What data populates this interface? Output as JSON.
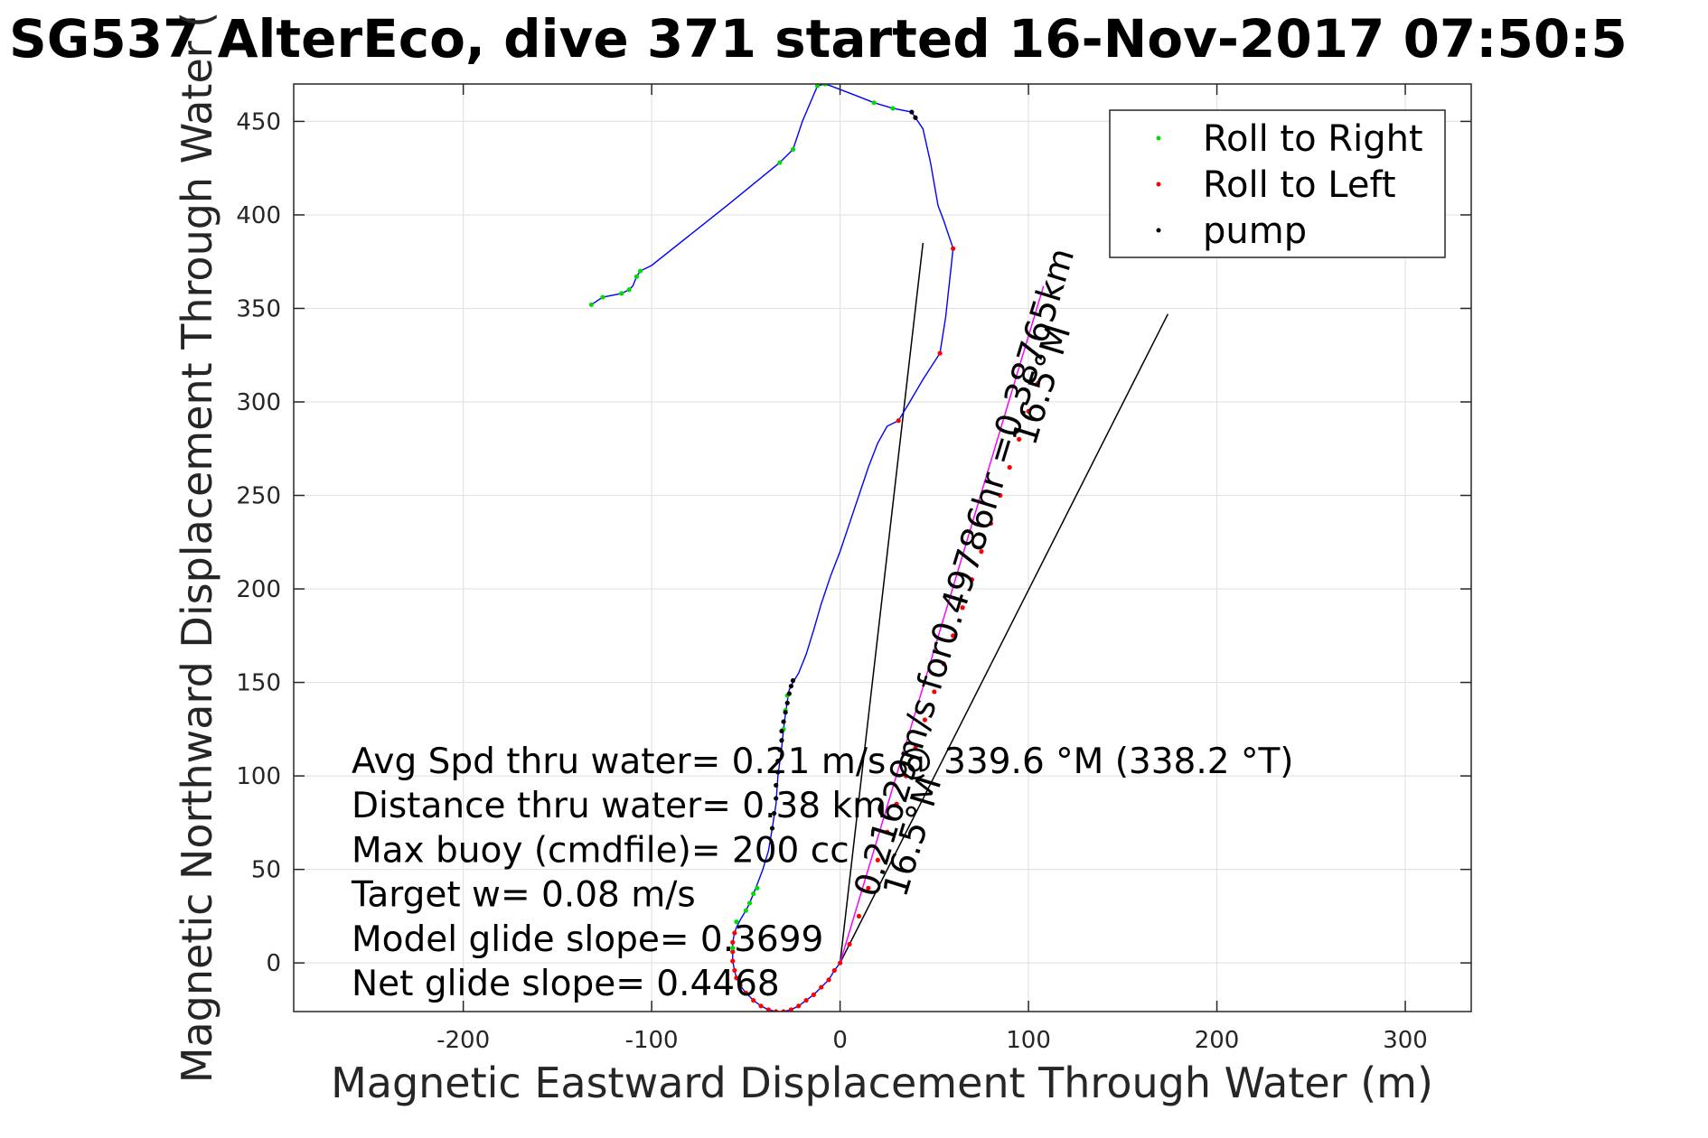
{
  "chart_data": {
    "type": "scatter",
    "title": "SG537 AlterEco, dive 371 started 16-Nov-2017 07:50:5",
    "xlabel": "Magnetic Eastward Displacement Through Water (m)",
    "ylabel": "Magnetic Northward Displacement Through Water (",
    "xlim": [
      -290,
      335
    ],
    "ylim": [
      -26,
      470
    ],
    "xticks": [
      -200,
      -100,
      0,
      100,
      200,
      300
    ],
    "yticks": [
      0,
      50,
      100,
      150,
      200,
      250,
      300,
      350,
      400,
      450
    ],
    "xtick_labels": [
      "-200",
      "-100",
      "0",
      "100",
      "200",
      "300"
    ],
    "ytick_labels": [
      "0",
      "50",
      "100",
      "150",
      "200",
      "250",
      "300",
      "350",
      "400",
      "450"
    ],
    "grid": true,
    "legend_position": "top-right",
    "legend": [
      {
        "label": "Roll to Right",
        "color": "#00dd00"
      },
      {
        "label": "Roll to Left",
        "color": "#ff0000"
      },
      {
        "label": "pump",
        "color": "#000000"
      }
    ],
    "track": {
      "name": "",
      "color": "#0000ff",
      "points": [
        [
          0,
          0
        ],
        [
          -3,
          -4
        ],
        [
          -6,
          -9
        ],
        [
          -10,
          -13
        ],
        [
          -14,
          -17
        ],
        [
          -18,
          -20
        ],
        [
          -22,
          -23
        ],
        [
          -26,
          -25
        ],
        [
          -30,
          -26
        ],
        [
          -34,
          -26
        ],
        [
          -38,
          -25
        ],
        [
          -42,
          -23
        ],
        [
          -46,
          -20
        ],
        [
          -50,
          -16
        ],
        [
          -53,
          -12
        ],
        [
          -55,
          -8
        ],
        [
          -56,
          -4
        ],
        [
          -57,
          1
        ],
        [
          -57,
          6
        ],
        [
          -57,
          11
        ],
        [
          -56,
          16
        ],
        [
          -55,
          19
        ],
        [
          -53,
          23
        ],
        [
          -50,
          28
        ],
        [
          -48,
          32
        ],
        [
          -46,
          37
        ],
        [
          -44,
          42
        ],
        [
          -41,
          50
        ],
        [
          -38,
          60
        ],
        [
          -36,
          72
        ],
        [
          -34,
          85
        ],
        [
          -33,
          100
        ],
        [
          -31,
          115
        ],
        [
          -30,
          125
        ],
        [
          -29,
          133
        ],
        [
          -28,
          140
        ],
        [
          -27,
          146
        ],
        [
          -25,
          150
        ],
        [
          -22,
          155
        ],
        [
          -18,
          165
        ],
        [
          -14,
          178
        ],
        [
          -10,
          192
        ],
        [
          -5,
          207
        ],
        [
          0,
          220
        ],
        [
          5,
          235
        ],
        [
          10,
          250
        ],
        [
          15,
          265
        ],
        [
          20,
          278
        ],
        [
          25,
          287
        ],
        [
          31,
          290
        ],
        [
          37,
          300
        ],
        [
          44,
          312
        ],
        [
          53,
          326
        ],
        [
          56,
          345
        ],
        [
          60,
          382
        ],
        [
          55,
          397
        ],
        [
          52,
          405
        ],
        [
          48,
          428
        ],
        [
          44,
          446
        ],
        [
          40,
          452
        ],
        [
          38,
          455
        ],
        [
          28,
          457
        ],
        [
          18,
          460
        ],
        [
          8,
          464
        ],
        [
          -5,
          469
        ],
        [
          -8,
          470
        ],
        [
          -12,
          469
        ],
        [
          -20,
          450
        ],
        [
          -25,
          435
        ],
        [
          -32,
          428
        ],
        [
          -60,
          405
        ],
        [
          -100,
          373
        ],
        [
          -106,
          370
        ],
        [
          -108,
          367
        ],
        [
          -110,
          362
        ],
        [
          -112,
          360
        ],
        [
          -114,
          359
        ],
        [
          -116,
          358
        ],
        [
          -126,
          356
        ],
        [
          -132,
          352
        ]
      ]
    },
    "roll_right_points": [
      [
        -132,
        352
      ],
      [
        -126,
        356
      ],
      [
        -116,
        358
      ],
      [
        -112,
        360
      ],
      [
        -108,
        367
      ],
      [
        -106,
        370
      ],
      [
        -32,
        428
      ],
      [
        -25,
        435
      ],
      [
        -12,
        469
      ],
      [
        -8,
        470
      ],
      [
        18,
        460
      ],
      [
        28,
        457
      ],
      [
        -57,
        8
      ],
      [
        -55,
        22
      ],
      [
        -50,
        28
      ],
      [
        -48,
        32
      ],
      [
        -46,
        37
      ],
      [
        -44,
        40
      ],
      [
        -30,
        125
      ],
      [
        -29,
        135
      ],
      [
        -28,
        143
      ]
    ],
    "roll_left_points": [
      [
        0,
        0
      ],
      [
        -3,
        -4
      ],
      [
        -6,
        -9
      ],
      [
        -10,
        -13
      ],
      [
        -14,
        -17
      ],
      [
        -18,
        -20
      ],
      [
        -22,
        -23
      ],
      [
        -26,
        -25
      ],
      [
        -30,
        -26
      ],
      [
        -34,
        -26
      ],
      [
        -38,
        -25
      ],
      [
        -42,
        -23
      ],
      [
        -46,
        -20
      ],
      [
        -50,
        -16
      ],
      [
        -53,
        -12
      ],
      [
        -55,
        -8
      ],
      [
        -56,
        -4
      ],
      [
        -57,
        1
      ],
      [
        -57,
        6
      ],
      [
        -57,
        11
      ],
      [
        -56,
        16
      ],
      [
        31,
        290
      ],
      [
        53,
        326
      ],
      [
        60,
        382
      ],
      [
        5,
        10
      ],
      [
        10,
        25
      ],
      [
        15,
        40
      ],
      [
        20,
        55
      ],
      [
        25,
        70
      ],
      [
        30,
        85
      ],
      [
        35,
        100
      ],
      [
        40,
        115
      ],
      [
        45,
        130
      ],
      [
        50,
        145
      ],
      [
        55,
        160
      ],
      [
        60,
        175
      ],
      [
        65,
        190
      ],
      [
        70,
        205
      ],
      [
        75,
        220
      ],
      [
        80,
        235
      ],
      [
        85,
        250
      ],
      [
        90,
        265
      ],
      [
        95,
        280
      ],
      [
        100,
        295
      ],
      [
        105,
        310
      ]
    ],
    "pump_points": [
      [
        -36,
        72
      ],
      [
        -35,
        80
      ],
      [
        -34,
        88
      ],
      [
        -34,
        95
      ],
      [
        -33,
        102
      ],
      [
        -33,
        108
      ],
      [
        -32,
        114
      ],
      [
        -31,
        119
      ],
      [
        -31,
        124
      ],
      [
        -30,
        129
      ],
      [
        -29,
        134
      ],
      [
        -28,
        139
      ],
      [
        -27,
        144
      ],
      [
        -26,
        148
      ],
      [
        -25,
        151
      ],
      [
        38,
        455
      ],
      [
        40,
        452
      ]
    ],
    "net_line": {
      "color": "#ff00ff",
      "from": [
        0,
        0
      ],
      "to": [
        108,
        362
      ]
    },
    "heading_line": {
      "color": "#000000",
      "from": [
        0,
        0
      ],
      "to": [
        44,
        385
      ]
    },
    "current_line": {
      "color": "#000000",
      "from": [
        0,
        0
      ],
      "to": [
        174,
        347
      ]
    },
    "annotations": [
      "Avg Spd thru water=  0.21 m/s @ 339.6 °M (338.2 °T)",
      "Distance thru water=  0.38 km",
      "Max buoy (cmdfile)= 200 cc",
      "Target w= 0.08 m/s",
      "Model glide slope= 0.3699",
      "Net glide slope= 0.4468"
    ],
    "rotated_labels": [
      {
        "text": "0.21629m/s for0.49786hr =0.38765km",
        "angle_deg": -73
      },
      {
        "text": "16.5°M",
        "angle_deg": -73
      },
      {
        "text": "16.5°M",
        "angle_deg": -73
      }
    ]
  }
}
